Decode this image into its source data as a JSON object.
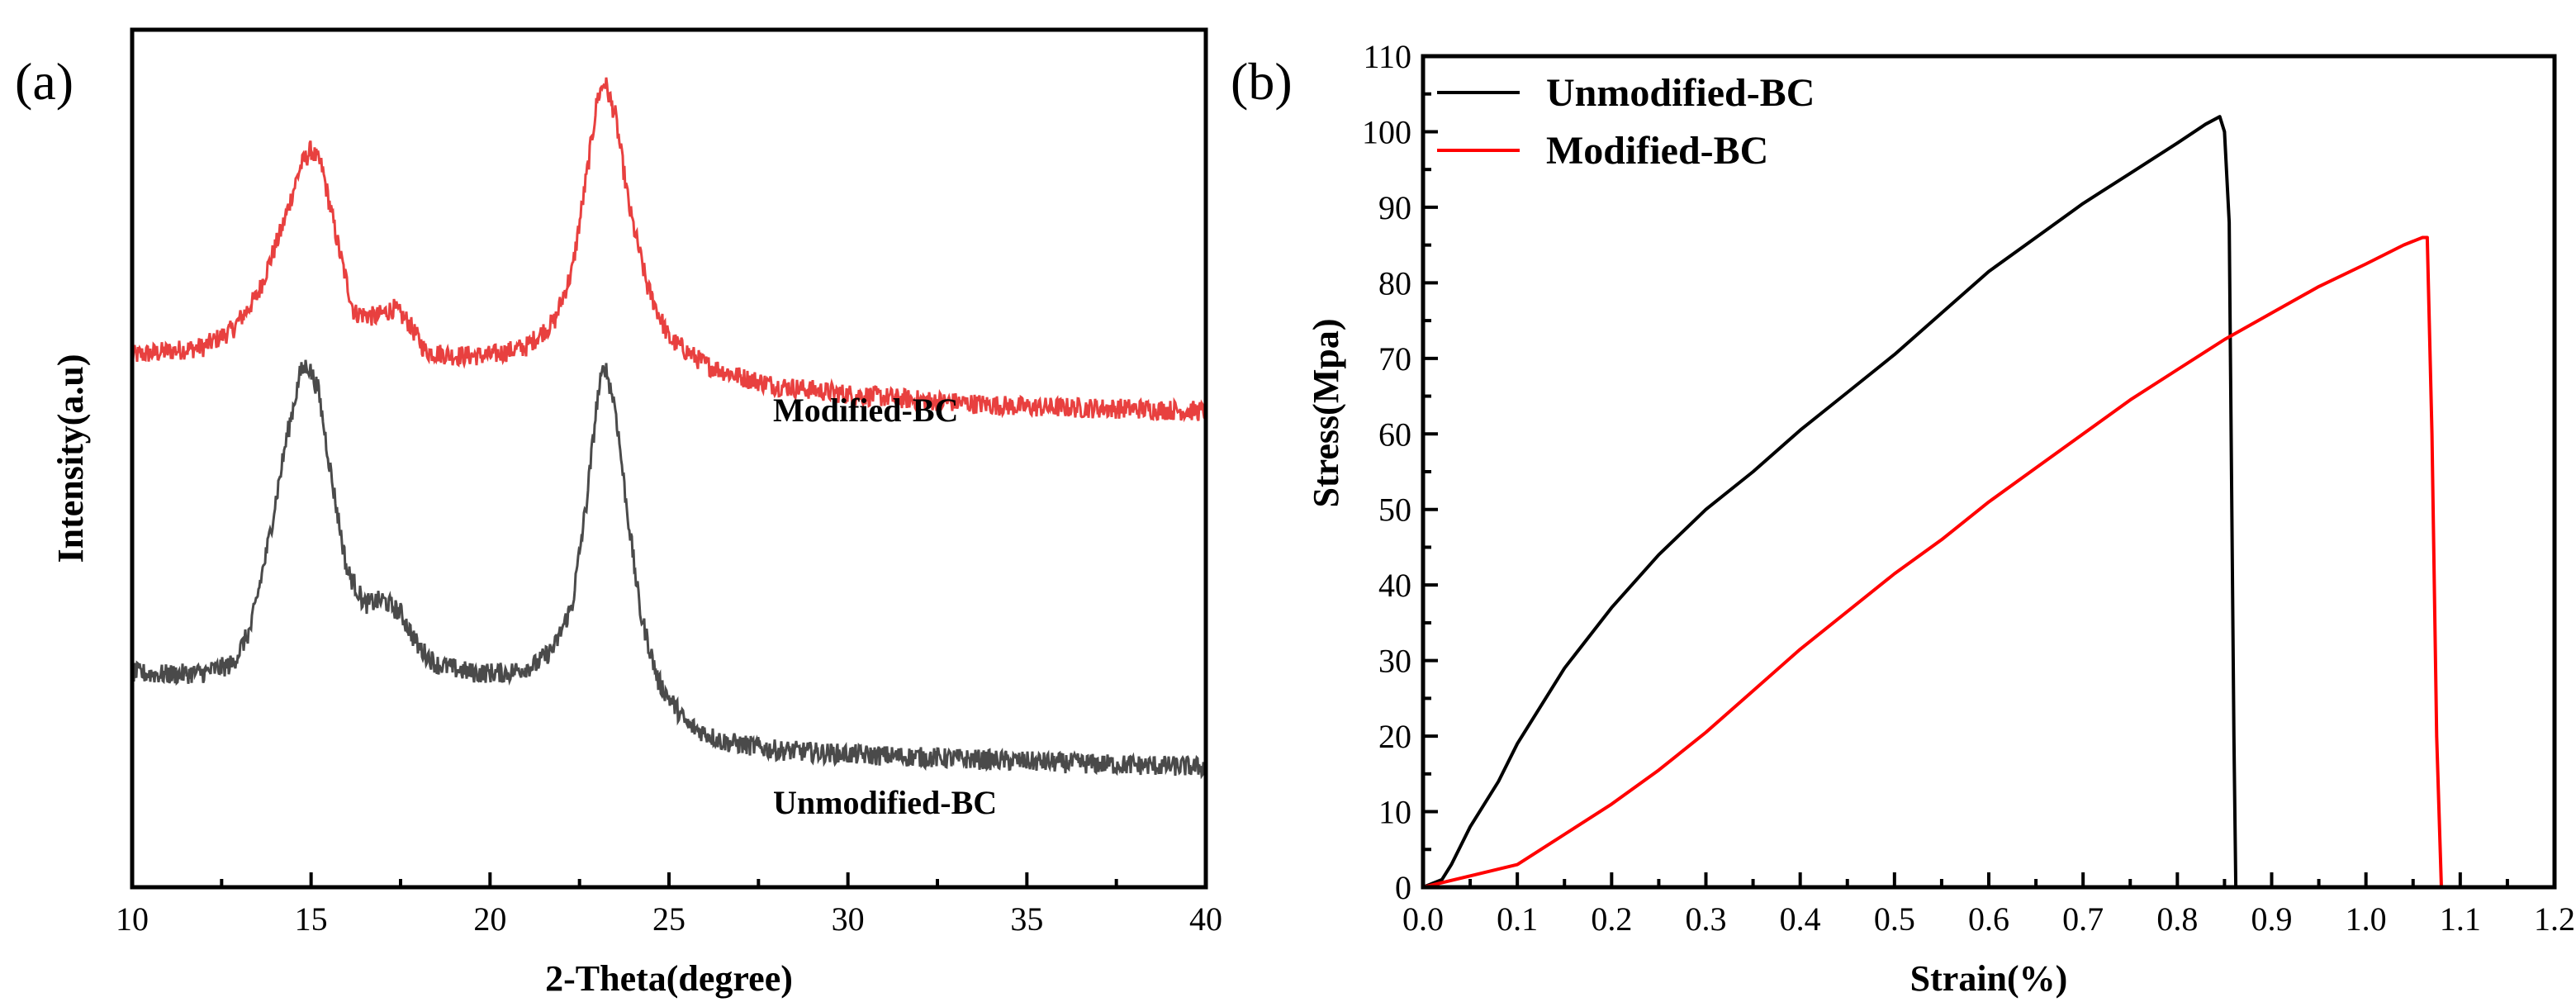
{
  "panels": {
    "a": "(a)",
    "b": "(b)"
  },
  "chart_data": [
    {
      "type": "line",
      "panel": "(a)",
      "xlabel": "2-Theta(degree)",
      "ylabel": "Intensity(a.u)",
      "xlim": [
        10,
        40
      ],
      "xticks": [
        10,
        15,
        20,
        25,
        30,
        35,
        40
      ],
      "yticks_shown": false,
      "ylim": [
        0,
        100
      ],
      "series": [
        {
          "name": "Modified-BC",
          "color": "#e8403f",
          "noise": 1.2,
          "x": [
            10,
            11,
            12,
            12.8,
            13.5,
            14.2,
            14.7,
            15.0,
            15.3,
            15.8,
            16.2,
            16.8,
            17.3,
            17.7,
            18.2,
            19,
            20,
            21,
            21.8,
            22.3,
            22.7,
            23.0,
            23.2,
            23.5,
            23.9,
            24.4,
            25,
            26,
            27,
            28,
            30,
            32,
            35,
            38,
            40
          ],
          "y": [
            62,
            62.5,
            63,
            65,
            69,
            77,
            84,
            86,
            84,
            74,
            67,
            66.5,
            67.5,
            66,
            62.5,
            62,
            62,
            63,
            66,
            72,
            83,
            92,
            94,
            90,
            79,
            70,
            64,
            61,
            59.5,
            58.5,
            57.5,
            56.8,
            56,
            55.8,
            55.5
          ]
        },
        {
          "name": "Unmodified-BC",
          "color": "#4a4a4a",
          "noise": 1.2,
          "x": [
            10,
            11,
            12,
            12.8,
            13.3,
            13.8,
            14.3,
            14.7,
            14.9,
            15.2,
            15.6,
            16.0,
            16.5,
            17.0,
            17.5,
            18.0,
            18.5,
            19.5,
            20.5,
            21.3,
            21.8,
            22.3,
            22.7,
            23.0,
            23.2,
            23.5,
            23.8,
            24.2,
            24.7,
            25.5,
            26.5,
            28,
            30,
            33,
            36,
            40
          ],
          "y": [
            25,
            24.8,
            25,
            26,
            30,
            40,
            52,
            60,
            61,
            58,
            47,
            37,
            33,
            33.5,
            32,
            28,
            26,
            25,
            25,
            26,
            28,
            33,
            45,
            57,
            61,
            56,
            45,
            32,
            24,
            19,
            17,
            16,
            15.5,
            15,
            14.5,
            14
          ]
        }
      ]
    },
    {
      "type": "line",
      "panel": "(b)",
      "xlabel": "Strain(%)",
      "ylabel": "Stress(Mpa)",
      "xlim": [
        0.0,
        1.2
      ],
      "ylim": [
        0,
        110
      ],
      "xticks": [
        0.0,
        0.1,
        0.2,
        0.3,
        0.4,
        0.5,
        0.6,
        0.7,
        0.8,
        0.9,
        1.0,
        1.1,
        1.2
      ],
      "yticks": [
        0,
        10,
        20,
        30,
        40,
        50,
        60,
        70,
        80,
        90,
        100,
        110
      ],
      "legend": "top-left",
      "series": [
        {
          "name": "Unmodified-BC",
          "color": "#000000",
          "x": [
            0,
            0.02,
            0.03,
            0.05,
            0.08,
            0.1,
            0.15,
            0.2,
            0.25,
            0.3,
            0.35,
            0.4,
            0.45,
            0.5,
            0.55,
            0.6,
            0.65,
            0.7,
            0.75,
            0.8,
            0.83,
            0.845,
            0.85,
            0.855,
            0.86,
            0.862
          ],
          "y": [
            0,
            1,
            3,
            8,
            14,
            19,
            29,
            37,
            44,
            50,
            55,
            60.5,
            65.5,
            70.5,
            76,
            81.5,
            86,
            90.5,
            94.5,
            98.5,
            101,
            102,
            100,
            88,
            20,
            0
          ]
        },
        {
          "name": "Modified-BC",
          "color": "#ff0000",
          "x": [
            0,
            0.05,
            0.1,
            0.15,
            0.2,
            0.25,
            0.3,
            0.35,
            0.4,
            0.45,
            0.5,
            0.55,
            0.6,
            0.65,
            0.7,
            0.75,
            0.8,
            0.85,
            0.9,
            0.95,
            1.0,
            1.04,
            1.06,
            1.065,
            1.07,
            1.075,
            1.08
          ],
          "y": [
            0,
            1.5,
            3,
            7,
            11,
            15.5,
            20.5,
            26,
            31.5,
            36.5,
            41.5,
            46,
            51,
            55.5,
            60,
            64.5,
            68.5,
            72.5,
            76,
            79.5,
            82.5,
            85,
            86,
            86,
            60,
            20,
            0
          ]
        }
      ]
    }
  ]
}
